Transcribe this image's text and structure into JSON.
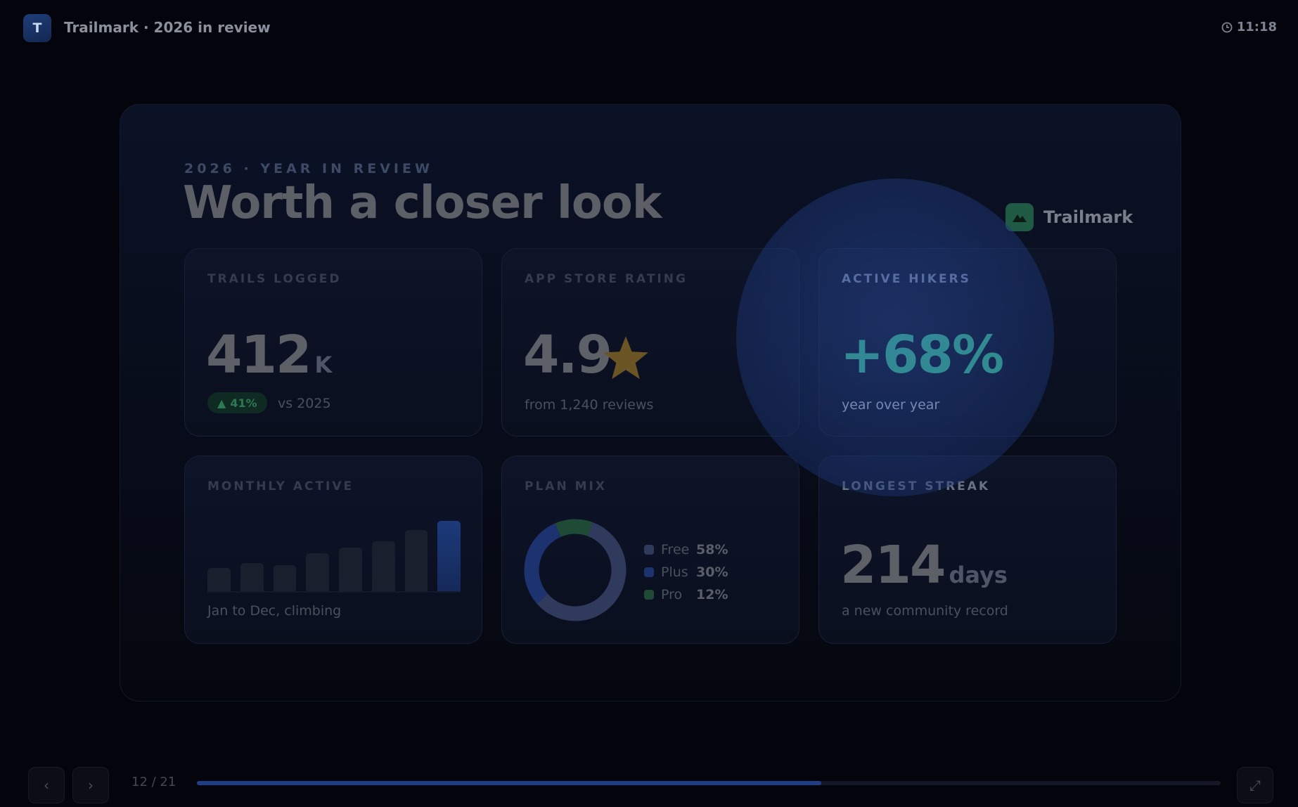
{
  "app": {
    "badge": "T",
    "title": "Trailmark · 2026 in review",
    "clock": "11:18"
  },
  "slide": {
    "eyebrow": "2026 · YEAR IN REVIEW",
    "headline": "Worth a closer look",
    "brand": "Trailmark",
    "cards": {
      "trails": {
        "label": "TRAILS LOGGED",
        "value": "412",
        "unit": "K",
        "trend": "41%",
        "trend_suffix": "vs 2025"
      },
      "rating": {
        "label": "APP STORE RATING",
        "value": "4.9",
        "sub": "from 1,240 reviews"
      },
      "hikers": {
        "label": "ACTIVE HIKERS",
        "value": "+68%",
        "sub": "year over year"
      },
      "monthly": {
        "label": "MONTHLY ACTIVE",
        "sub": "Jan to Dec, climbing",
        "bar_levels": [
          0.33,
          0.4,
          0.37,
          0.54,
          0.62,
          0.71,
          0.87,
          1.0
        ]
      },
      "plan": {
        "label": "PLAN MIX",
        "segments": [
          {
            "name": "Free",
            "value": "58%",
            "share": 58,
            "color": "#2f3a5c"
          },
          {
            "name": "Plus",
            "value": "30%",
            "share": 30,
            "color": "#1c3370"
          },
          {
            "name": "Pro",
            "value": "12%",
            "share": 12,
            "color": "#1f4a35"
          }
        ]
      },
      "streak": {
        "label": "LONGEST STREAK",
        "value": "214",
        "unit": "days",
        "sub": "a new community record"
      }
    }
  },
  "nav": {
    "prev": "‹",
    "next": "›",
    "page": "12 / 21",
    "progress": 0.61,
    "fullscreen": "⤢"
  },
  "colors": {
    "accent_green": "#3fd49a",
    "accent_blue": "#1e3f88",
    "star": "#6b5524"
  }
}
